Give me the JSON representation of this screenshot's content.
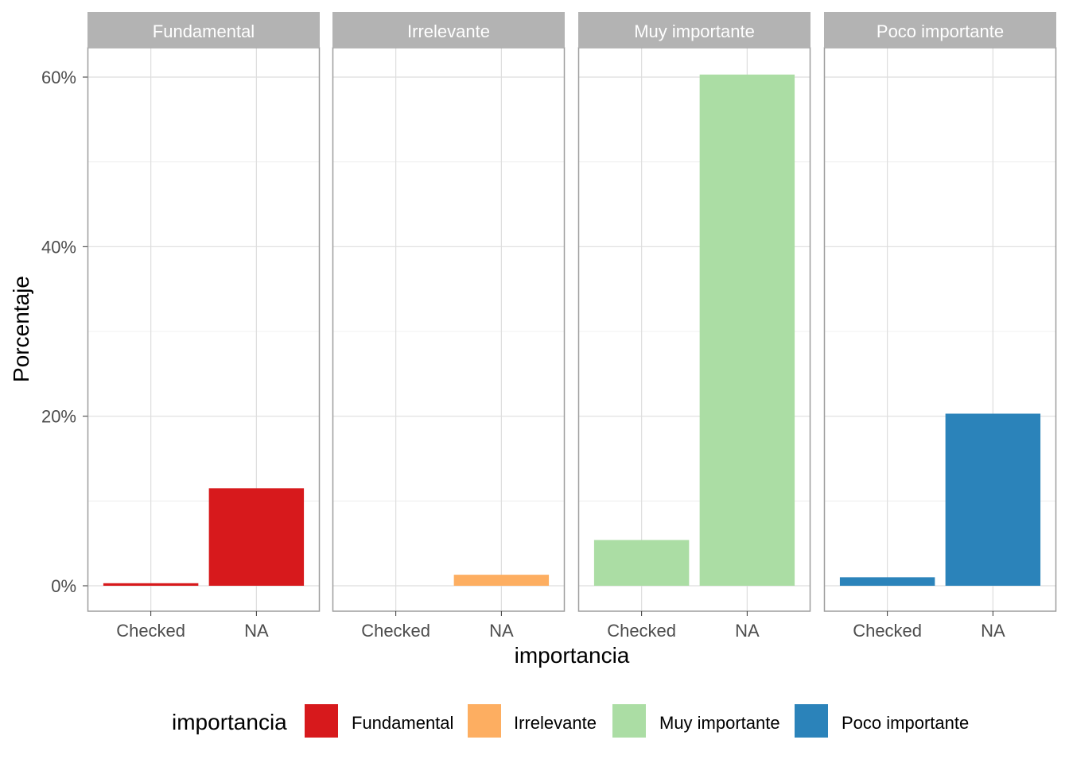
{
  "chart_data": {
    "type": "bar",
    "faceted": true,
    "xlabel": "importancia",
    "ylabel": "Porcentaje",
    "ylim": [
      -0.03,
      0.65
    ],
    "yticks": [
      0,
      0.2,
      0.4,
      0.6
    ],
    "ytick_labels": [
      "0%",
      "20%",
      "40%",
      "60%"
    ],
    "categories": [
      "Checked",
      "NA"
    ],
    "grid": true,
    "legend": {
      "title": "importancia",
      "position": "bottom",
      "items": [
        {
          "label": "Fundamental",
          "color": "#d7191c"
        },
        {
          "label": "Irrelevante",
          "color": "#fdae61"
        },
        {
          "label": "Muy importante",
          "color": "#abdda4"
        },
        {
          "label": "Poco importante",
          "color": "#2b83ba"
        }
      ]
    },
    "panels": [
      {
        "title": "Fundamental",
        "color": "#d7191c",
        "values": [
          0.003,
          0.115
        ]
      },
      {
        "title": "Irrelevante",
        "color": "#fdae61",
        "values": [
          0.0,
          0.013
        ]
      },
      {
        "title": "Muy importante",
        "color": "#abdda4",
        "values": [
          0.054,
          0.603
        ]
      },
      {
        "title": "Poco importante",
        "color": "#2b83ba",
        "values": [
          0.01,
          0.203
        ]
      }
    ]
  }
}
